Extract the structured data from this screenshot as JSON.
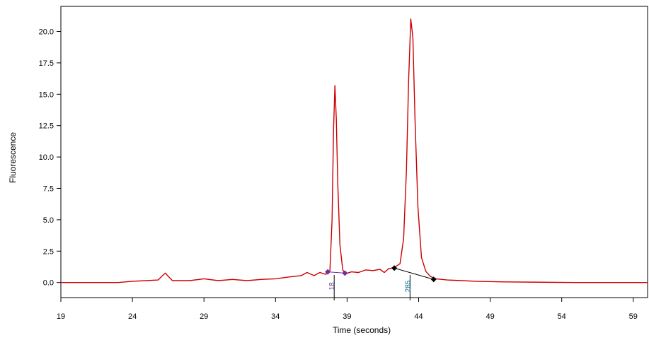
{
  "chart_data": {
    "type": "line",
    "xlabel": "Time (seconds)",
    "ylabel": "Fluorescence",
    "xlim": [
      19,
      60
    ],
    "ylim": [
      -1.2,
      22
    ],
    "x_ticks": [
      19,
      24,
      29,
      34,
      39,
      44,
      49,
      54,
      59
    ],
    "y_ticks": [
      0.0,
      2.5,
      5.0,
      7.5,
      10.0,
      12.5,
      15.0,
      17.5,
      20.0
    ],
    "y_tick_labels": [
      "0.0",
      "2.5",
      "5.0",
      "7.5",
      "10.0",
      "12.5",
      "15.0",
      "17.5",
      "20.0"
    ],
    "grid": false,
    "series": [
      {
        "color": "#cc0000",
        "points": [
          [
            19,
            0.0
          ],
          [
            23.0,
            0.0
          ],
          [
            24.0,
            0.1
          ],
          [
            25.0,
            0.15
          ],
          [
            25.8,
            0.2
          ],
          [
            26.1,
            0.55
          ],
          [
            26.3,
            0.75
          ],
          [
            26.5,
            0.5
          ],
          [
            26.8,
            0.15
          ],
          [
            28.0,
            0.15
          ],
          [
            29.0,
            0.3
          ],
          [
            30.0,
            0.15
          ],
          [
            31.0,
            0.25
          ],
          [
            32.0,
            0.15
          ],
          [
            33.0,
            0.25
          ],
          [
            34.0,
            0.3
          ],
          [
            35.0,
            0.45
          ],
          [
            35.8,
            0.55
          ],
          [
            36.2,
            0.8
          ],
          [
            36.7,
            0.55
          ],
          [
            37.1,
            0.8
          ],
          [
            37.5,
            0.65
          ],
          [
            37.8,
            0.9
          ],
          [
            37.95,
            5.0
          ],
          [
            38.05,
            12.0
          ],
          [
            38.15,
            15.7
          ],
          [
            38.25,
            13.0
          ],
          [
            38.35,
            8.0
          ],
          [
            38.5,
            3.0
          ],
          [
            38.7,
            1.0
          ],
          [
            38.9,
            0.7
          ],
          [
            39.3,
            0.85
          ],
          [
            39.8,
            0.8
          ],
          [
            40.3,
            1.0
          ],
          [
            40.8,
            0.95
          ],
          [
            41.3,
            1.05
          ],
          [
            41.6,
            0.8
          ],
          [
            41.9,
            1.1
          ],
          [
            42.3,
            1.2
          ],
          [
            42.7,
            1.5
          ],
          [
            42.95,
            3.5
          ],
          [
            43.15,
            9.0
          ],
          [
            43.3,
            16.0
          ],
          [
            43.45,
            21.0
          ],
          [
            43.6,
            19.5
          ],
          [
            43.75,
            13.0
          ],
          [
            43.95,
            6.0
          ],
          [
            44.2,
            2.0
          ],
          [
            44.5,
            0.9
          ],
          [
            44.8,
            0.5
          ],
          [
            45.2,
            0.3
          ],
          [
            46.0,
            0.2
          ],
          [
            47.0,
            0.15
          ],
          [
            48.0,
            0.1
          ],
          [
            50.0,
            0.05
          ],
          [
            55.0,
            0.0
          ],
          [
            60.0,
            0.0
          ]
        ]
      }
    ],
    "peak_markers": [
      {
        "label": "18",
        "color": "#7030a0",
        "tick_x": 38.1,
        "baseline": [
          [
            37.65,
            0.85
          ],
          [
            38.85,
            0.75
          ]
        ]
      },
      {
        "label": "285",
        "color": "#006f8a",
        "tick_x": 43.4,
        "baseline": [
          [
            42.3,
            1.15
          ],
          [
            45.05,
            0.25
          ]
        ]
      }
    ]
  }
}
